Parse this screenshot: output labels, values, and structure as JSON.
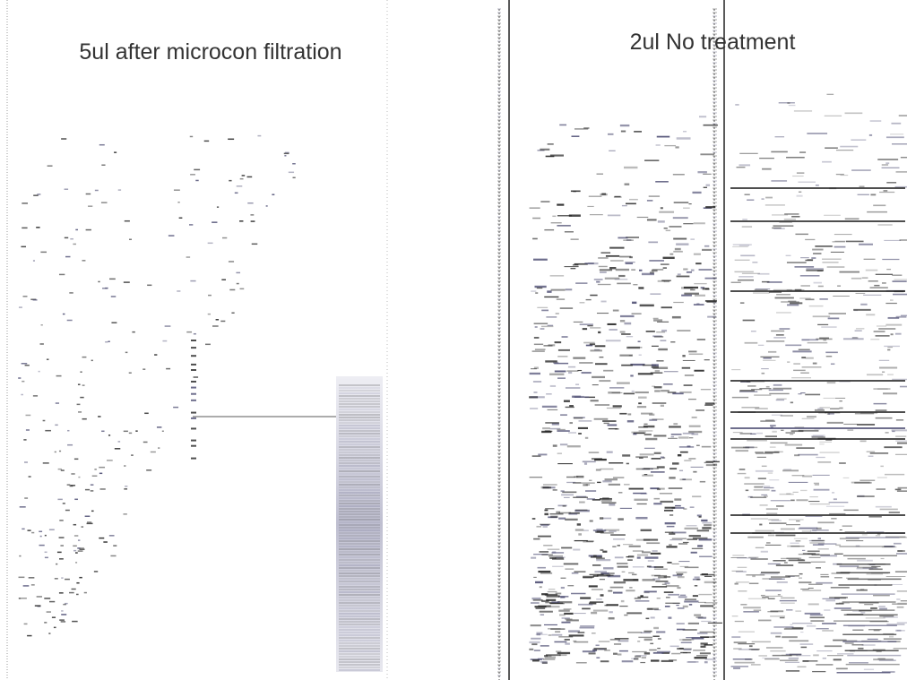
{
  "panels": [
    {
      "title": "5ul after microcon filtration"
    },
    {
      "title": "2ul No treatment"
    }
  ]
}
